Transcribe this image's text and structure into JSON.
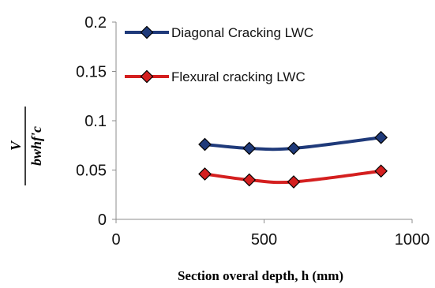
{
  "chart_data": {
    "type": "line",
    "xlabel": "Section overal depth, h (mm)",
    "ylabel": {
      "numerator": "V",
      "denominator": "bwhf'c"
    },
    "xlim": [
      0,
      1000
    ],
    "ylim": [
      0,
      0.2
    ],
    "x_ticks": [
      "0",
      "500",
      "1000"
    ],
    "y_ticks": [
      "0",
      "0.05",
      "0.1",
      "0.15",
      "0.2"
    ],
    "grid": false,
    "legend_position": "top-left",
    "series": [
      {
        "name": "Diagonal Cracking LWC",
        "color": "#1f3a7a",
        "marker_color": "#1f3a7a",
        "marker": "diamond",
        "x": [
          300,
          450,
          600,
          895
        ],
        "y": [
          0.076,
          0.072,
          0.072,
          0.083
        ]
      },
      {
        "name": "Flexural cracking LWC",
        "color": "#d41f1f",
        "marker_color": "#d41f1f",
        "marker": "diamond",
        "x": [
          300,
          450,
          600,
          895
        ],
        "y": [
          0.046,
          0.04,
          0.038,
          0.049
        ]
      }
    ]
  }
}
